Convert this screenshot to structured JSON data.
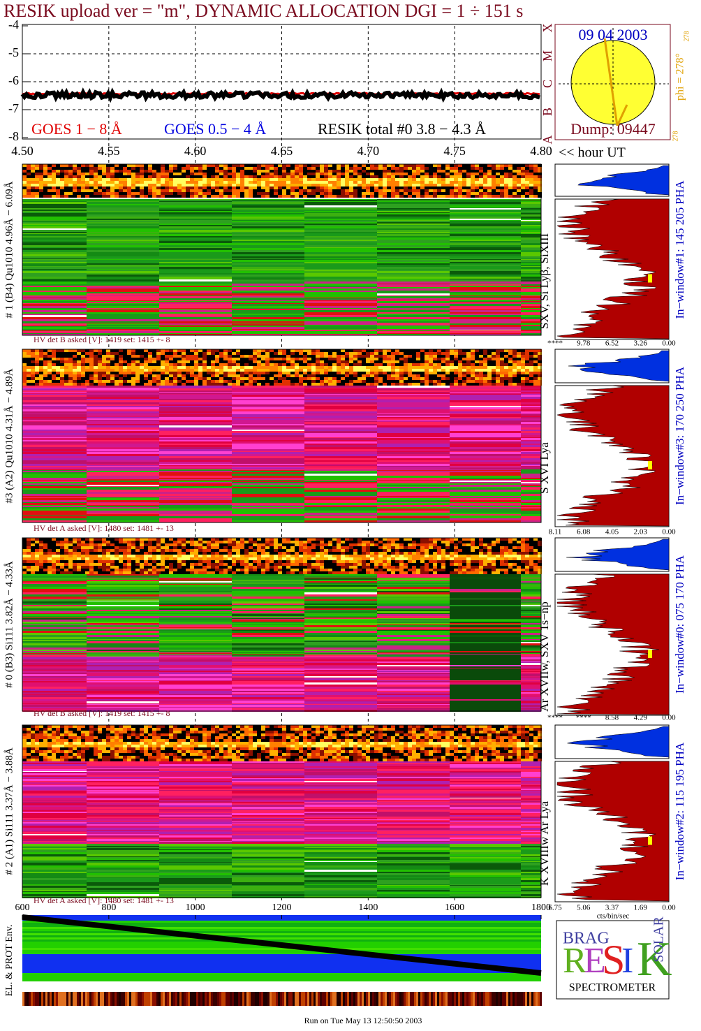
{
  "header": {
    "title": "RESIK upload ver = \"m\", DYNAMIC ALLOCATION  DGI =   1 ÷ 151 s"
  },
  "goes_plot": {
    "xlim": [
      4.5,
      4.8
    ],
    "xticks": [
      {
        "value": 4.5,
        "label": "4.50"
      },
      {
        "value": 4.55,
        "label": "4.55"
      },
      {
        "value": 4.6,
        "label": "4.60"
      },
      {
        "value": 4.65,
        "label": "4.65"
      },
      {
        "value": 4.7,
        "label": "4.70"
      },
      {
        "value": 4.75,
        "label": "4.75"
      },
      {
        "value": 4.8,
        "label": "4.80"
      }
    ],
    "ylim": [
      -8,
      -4
    ],
    "yticks": [
      -4,
      -5,
      -6,
      -7,
      -8
    ],
    "x_unit": "<< hour UT",
    "legend": [
      {
        "name": "GOES 1 − 8 Å",
        "color": "#e00000"
      },
      {
        "name": "GOES 0.5 − 4 Å",
        "color": "#0000e0"
      },
      {
        "name": "RESIK total #0  3.8 − 4.3 Å",
        "color": "#000000"
      }
    ],
    "class_letters": [
      "A",
      "B",
      "C",
      "M",
      "X"
    ]
  },
  "sun": {
    "date": "09 04 2003",
    "dump": "Dump: 09447",
    "phi": "phi = 278°",
    "phi_top": "278",
    "phi_bottom": "278"
  },
  "panels": [
    {
      "label": "# 1 (B4) Qu1010 4.96Å − 6.09Å",
      "hv": "HV det B asked [V]:  1419 set:  1415  +-    8",
      "lines": "SXV, Si Lyβ, SiXIII",
      "window": "In−window#1:  145 205 PHA",
      "ticks": [
        "****",
        "9.78",
        "6.52",
        "3.26",
        "0.00"
      ]
    },
    {
      "label": "#3 (A2) Qu1010  4.31Å − 4.89Å",
      "hv": "HV det A asked [V]:  1480 set:  1481  +-   13",
      "lines": "S XVI Lya",
      "window": "In−window#3:  170 250 PHA",
      "ticks": [
        "8.11",
        "6.08",
        "4.05",
        "2.03",
        "0.00"
      ]
    },
    {
      "label": "# 0 (B3) Si111  3.82Å − 4.33Å",
      "hv": "HV det B asked [V]:  1419 set:  1415  +-    8",
      "lines": "Ar XVIIw,  SXV 1s−np",
      "window": "In−window#0:  075 170 PHA",
      "ticks": [
        "****",
        "****",
        "8.58",
        "4.29",
        "0.00"
      ]
    },
    {
      "label": "# 2 (A1) Si111  3.37Å − 3.88Å",
      "hv": "HV det A asked [V]:  1480 set:  1481  +-   13",
      "lines": "K XVIIIw  Ar Lya",
      "window": "In−window#2:  115 195 PHA",
      "ticks": [
        "6.75",
        "5.06",
        "3.37",
        "1.69",
        "0.00"
      ]
    }
  ],
  "spectrum_unit": "cts/bin/sec",
  "env_panel": {
    "label": "EL. & PROT Env.",
    "xlim": [
      600,
      1800
    ],
    "xticks": [
      600,
      800,
      1000,
      1200,
      1400,
      1600,
      1800
    ]
  },
  "logo": {
    "top": "BRAG",
    "letters": [
      "R",
      "E",
      "S",
      "I",
      "K"
    ],
    "side": "SOLAR",
    "bottom": "SPECTROMETER"
  },
  "footer": "Run on Tue May 13 12:50:50 2003"
}
